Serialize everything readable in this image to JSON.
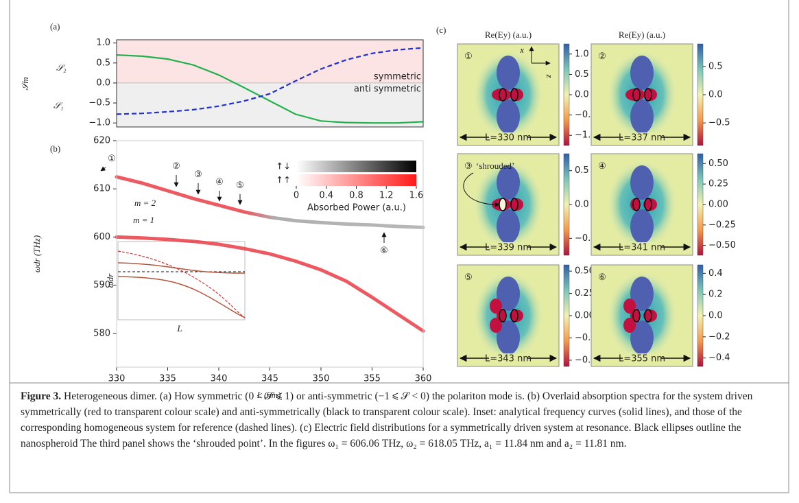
{
  "chart_data": [
    {
      "type": "line",
      "panel_label": "(a)",
      "y_label": "𝒮m",
      "x": [
        330,
        332.5,
        335,
        337.5,
        340,
        342.5,
        345,
        347.5,
        350,
        352.5,
        355,
        357.5,
        360
      ],
      "series": [
        {
          "name": "𝒮₂",
          "color": "#22b14c",
          "linestyle": "solid",
          "values": [
            0.7,
            0.67,
            0.6,
            0.45,
            0.2,
            -0.12,
            -0.45,
            -0.78,
            -0.95,
            -0.99,
            -1.0,
            -1.0,
            -0.97
          ]
        },
        {
          "name": "𝒮₁",
          "color": "#1f2fd8",
          "linestyle": "dashed",
          "values": [
            -0.78,
            -0.76,
            -0.72,
            -0.67,
            -0.58,
            -0.45,
            -0.27,
            0.05,
            0.35,
            0.58,
            0.74,
            0.83,
            0.88
          ]
        }
      ],
      "region_labels": [
        "symmetric",
        "anti symmetric"
      ],
      "xlim": [
        330,
        360
      ],
      "ylim": [
        -1.1,
        1.08
      ],
      "yticks": [
        {
          "value": -1,
          "label": "−1.0"
        },
        {
          "value": -0.5,
          "label": "−0.5"
        },
        {
          "value": 0,
          "label": "0.0"
        },
        {
          "value": 0.5,
          "label": "0.5"
        },
        {
          "value": 1,
          "label": "1.0"
        }
      ]
    },
    {
      "type": "line",
      "panel_label": "(b)",
      "x_label": "L (nm)",
      "y_label": "ωdr (THz)",
      "x": [
        330,
        332.5,
        335,
        337.5,
        340,
        342.5,
        345,
        347.5,
        350,
        352.5,
        355,
        357.5,
        360
      ],
      "series": [
        {
          "color": "#e8303a",
          "values": [
            612.5,
            611.2,
            609.6,
            608.0,
            606.6,
            605.2,
            604.1,
            603.4,
            603.0,
            602.7,
            602.5,
            602.2,
            602.0
          ]
        },
        {
          "color": "#e8303a",
          "values": [
            600.0,
            599.8,
            599.5,
            599.1,
            598.5,
            597.6,
            596.5,
            595.0,
            593.2,
            590.8,
            587.5,
            584.0,
            580.5
          ]
        }
      ],
      "annotations": [
        {
          "text": "m = 2",
          "color": "#22b14c"
        },
        {
          "text": "m = 1",
          "color": "#1f2fd8"
        }
      ],
      "markers": [
        "①",
        "②",
        "③",
        "④",
        "⑤",
        "⑥"
      ],
      "colorbar": {
        "rows": [
          "↑↓",
          "↑↑"
        ],
        "lim": [
          0,
          1.6
        ],
        "ticks": [
          0,
          0.4,
          0.8,
          1.2,
          1.6
        ],
        "label": "Absorbed Power (a.u.)"
      },
      "inset": {
        "x_label": "L",
        "y_label": "ωdr"
      },
      "xlim": [
        330,
        360
      ],
      "xticks": [
        330,
        335,
        340,
        345,
        350,
        355,
        360
      ],
      "ylim": [
        573,
        620
      ],
      "yticks": [
        580,
        590,
        600,
        610,
        620
      ]
    }
  ],
  "field_maps": {
    "panel_label": "(c)",
    "column_titles": [
      "Re(Ey) (a.u.)",
      "Re(Ey) (a.u.)"
    ],
    "axes": [
      "x",
      "z"
    ],
    "annotation": "‘shrouded’",
    "panels": [
      {
        "label": "①",
        "length": "L=330 nm",
        "lim": [
          -1.25,
          1.25
        ],
        "ticks": [
          {
            "value": -1,
            "label": "−1.0"
          },
          {
            "value": -0.5,
            "label": "−0.5"
          },
          {
            "value": 0,
            "label": "0.0"
          },
          0.5,
          {
            "value": 1,
            "label": "1.0"
          }
        ]
      },
      {
        "label": "②",
        "length": "L=337 nm",
        "lim": [
          -0.9,
          0.9
        ],
        "ticks": [
          {
            "value": -0.5,
            "label": "−0.5"
          },
          {
            "value": 0,
            "label": "0.0"
          },
          0.5
        ]
      },
      {
        "label": "③",
        "length": "L=339 nm",
        "lim": [
          -0.75,
          0.75
        ],
        "ticks": [
          {
            "value": -0.5,
            "label": "−0.5"
          },
          {
            "value": 0,
            "label": "0.0"
          },
          0.5
        ]
      },
      {
        "label": "④",
        "length": "L=341 nm",
        "lim": [
          -0.62,
          0.62
        ],
        "ticks": [
          {
            "value": -0.5,
            "label": "−0.50"
          },
          {
            "value": -0.25,
            "label": "−0.25"
          },
          {
            "value": 0,
            "label": "0.00"
          },
          0.25,
          {
            "value": 0.5,
            "label": "0.50"
          }
        ]
      },
      {
        "label": "⑤",
        "length": "L=343 nm",
        "lim": [
          -0.57,
          0.57
        ],
        "ticks": [
          {
            "value": -0.5,
            "label": "−0.50"
          },
          {
            "value": -0.25,
            "label": "−0.25"
          },
          {
            "value": 0,
            "label": "0.00"
          },
          0.25,
          {
            "value": 0.5,
            "label": "0.50"
          }
        ]
      },
      {
        "label": "⑥",
        "length": "L=355 nm",
        "lim": [
          -0.48,
          0.48
        ],
        "ticks": [
          {
            "value": -0.4,
            "label": "−0.4"
          },
          {
            "value": -0.2,
            "label": "−0.2"
          },
          {
            "value": 0,
            "label": "0.0"
          },
          0.2,
          0.4
        ]
      }
    ]
  },
  "caption": {
    "label": "Figure 3.",
    "text": "Heterogeneous dimer. (a) How symmetric (0 < 𝒮 ⩽ 1) or anti-symmetric (−1 ⩽ 𝒮 < 0) the polariton mode is. (b) Overlaid absorption spectra for the system driven symmetrically (red to transparent colour scale) and anti-symmetrically (black to transparent colour scale). Inset: analytical frequency curves (solid lines), and those of the corresponding homogeneous system for reference (dashed lines). (c) Electric field distributions for a symmetrically driven system at resonance. Black ellipses outline the nanospheroid The third panel shows the ‘shrouded point’. In the figures ω₁ = 606.06 THz, ω₂ = 618.05 THz, a₁ = 11.84 nm and a₂ = 11.81 nm."
  }
}
